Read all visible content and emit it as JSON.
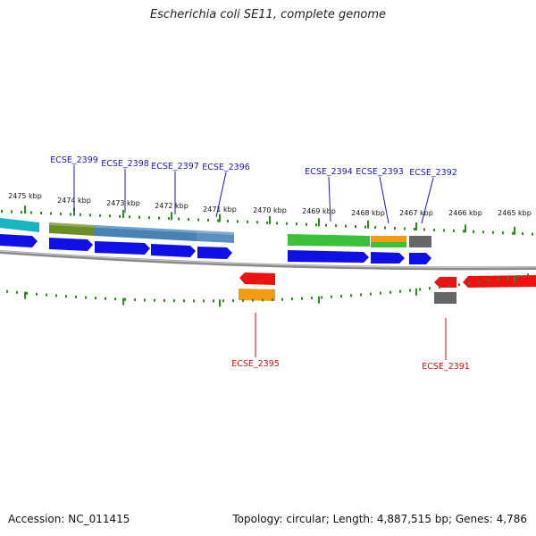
{
  "title": "Escherichia coli SE11, complete genome",
  "footer": {
    "accession": "Accession: NC_011415",
    "summary": "Topology: circular; Length: 4,887,515 bp; Genes: 4,786"
  },
  "colors": {
    "forward_gene_label": "#1a1aa8",
    "reverse_gene_label": "#cc1111",
    "cds_forward": "#1010e6",
    "cds_reverse": "#ee1111",
    "tick": "#2e8b1e",
    "backbone": "#888888"
  },
  "scale_ticks": [
    {
      "label": "2475 kbp"
    },
    {
      "label": "2474 kbp"
    },
    {
      "label": "2473 kbp"
    },
    {
      "label": "2472 kbp"
    },
    {
      "label": "2471 kbp"
    },
    {
      "label": "2470 kbp"
    },
    {
      "label": "2469 kbp"
    },
    {
      "label": "2468 kbp"
    },
    {
      "label": "2467 kbp"
    },
    {
      "label": "2466 kbp"
    },
    {
      "label": "2465 kbp"
    }
  ],
  "gene_labels": [
    {
      "name": "ECSE_2399",
      "strand": "forward"
    },
    {
      "name": "ECSE_2398",
      "strand": "forward"
    },
    {
      "name": "ECSE_2397",
      "strand": "forward"
    },
    {
      "name": "ECSE_2396",
      "strand": "forward"
    },
    {
      "name": "ECSE_2394",
      "strand": "forward"
    },
    {
      "name": "ECSE_2393",
      "strand": "forward"
    },
    {
      "name": "ECSE_2392",
      "strand": "forward"
    },
    {
      "name": "ECSE_2395",
      "strand": "reverse"
    },
    {
      "name": "ECSE_2391",
      "strand": "reverse"
    }
  ]
}
